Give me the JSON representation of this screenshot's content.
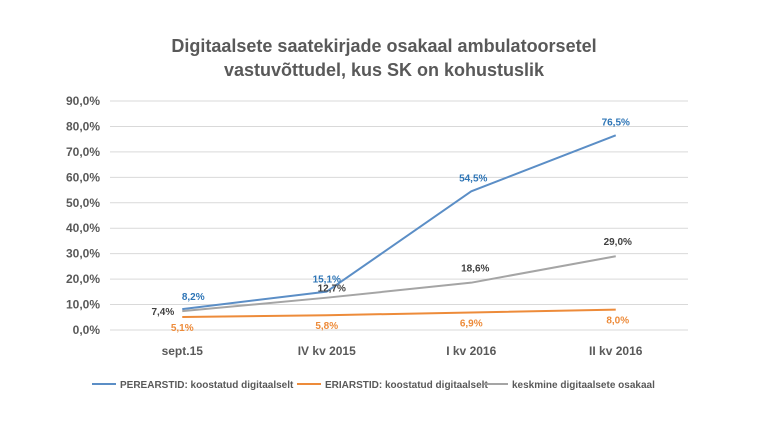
{
  "chart_data": {
    "type": "line",
    "title_line1": "Digitaalsete saatekirjade osakaal ambulatoorsetel",
    "title_line2": "vastuvõttudel, kus SK on kohustuslik",
    "categories": [
      "sept.15",
      "IV kv 2015",
      "I kv 2016",
      "II kv 2016"
    ],
    "ylim": [
      0,
      90
    ],
    "yticks": [
      0,
      10,
      20,
      30,
      40,
      50,
      60,
      70,
      80,
      90
    ],
    "ytick_labels": [
      "0,0%",
      "10,0%",
      "20,0%",
      "30,0%",
      "40,0%",
      "50,0%",
      "60,0%",
      "70,0%",
      "80,0%",
      "90,0%"
    ],
    "grid": true,
    "legend_position": "bottom",
    "series": [
      {
        "name": "PEREARSTID: koostatud digitaalselt",
        "color": "#5b8ec6",
        "values": [
          8.2,
          15.1,
          54.5,
          76.5
        ],
        "labels": [
          "8,2%",
          "15,1%",
          "54,5%",
          "76,5%"
        ],
        "label_color": "#2e75b6"
      },
      {
        "name": "ERIARSTID: koostatud digitaalselt",
        "color": "#ed8b3a",
        "values": [
          5.1,
          5.8,
          6.9,
          8.0
        ],
        "labels": [
          "5,1%",
          "5,8%",
          "6,9%",
          "8,0%"
        ],
        "label_color": "#ed8b3a"
      },
      {
        "name": "keskmine digitaalsete osakaal",
        "color": "#a5a5a5",
        "values": [
          7.4,
          12.7,
          18.6,
          29.0
        ],
        "labels": [
          "7,4%",
          "12,7%",
          "18,6%",
          "29,0%"
        ],
        "label_color": "#404040"
      }
    ]
  }
}
